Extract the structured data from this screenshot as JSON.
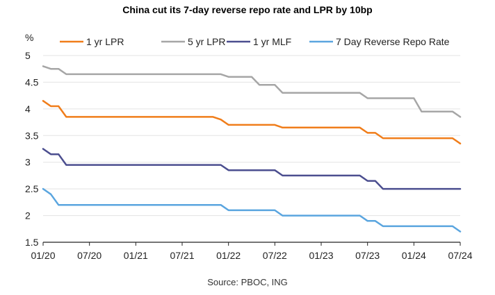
{
  "chart_data": {
    "type": "line",
    "title": "China cut its 7-day reverse repo rate and LPR by 10bp",
    "source": "Source: PBOC, ING",
    "ylabel": "%",
    "ylim": [
      1.5,
      5
    ],
    "yticks": [
      5,
      4.5,
      4,
      3.5,
      3,
      2.5,
      2,
      1.5
    ],
    "ytick_labels": [
      "5",
      "4.5",
      "4",
      "3.5",
      "3",
      "2.5",
      "2",
      "1.5"
    ],
    "xlim": [
      0,
      54
    ],
    "xticks": [
      0,
      6,
      12,
      18,
      24,
      30,
      36,
      42,
      48,
      54
    ],
    "xtick_labels": [
      "01/20",
      "07/20",
      "01/21",
      "07/21",
      "01/22",
      "07/22",
      "01/23",
      "07/23",
      "01/24",
      "07/24"
    ],
    "grid": "horizontal",
    "legend": "top",
    "series": [
      {
        "name": "1 yr LPR",
        "color": "#f07d1a",
        "points": [
          [
            0,
            4.15
          ],
          [
            1,
            4.05
          ],
          [
            2,
            4.05
          ],
          [
            3,
            3.85
          ],
          [
            22,
            3.85
          ],
          [
            23,
            3.8
          ],
          [
            24,
            3.7
          ],
          [
            30,
            3.7
          ],
          [
            31,
            3.65
          ],
          [
            41,
            3.65
          ],
          [
            42,
            3.55
          ],
          [
            43,
            3.55
          ],
          [
            44,
            3.45
          ],
          [
            53,
            3.45
          ],
          [
            54,
            3.35
          ]
        ]
      },
      {
        "name": "5 yr LPR",
        "color": "#a6a6a6",
        "points": [
          [
            0,
            4.8
          ],
          [
            1,
            4.75
          ],
          [
            2,
            4.75
          ],
          [
            3,
            4.65
          ],
          [
            23,
            4.65
          ],
          [
            24,
            4.6
          ],
          [
            27,
            4.6
          ],
          [
            28,
            4.45
          ],
          [
            30,
            4.45
          ],
          [
            31,
            4.3
          ],
          [
            41,
            4.3
          ],
          [
            42,
            4.2
          ],
          [
            48,
            4.2
          ],
          [
            49,
            3.95
          ],
          [
            53,
            3.95
          ],
          [
            54,
            3.85
          ]
        ]
      },
      {
        "name": "1 yr MLF",
        "color": "#4b4e8f",
        "points": [
          [
            0,
            3.25
          ],
          [
            1,
            3.15
          ],
          [
            2,
            3.15
          ],
          [
            3,
            2.95
          ],
          [
            23,
            2.95
          ],
          [
            24,
            2.85
          ],
          [
            30,
            2.85
          ],
          [
            31,
            2.75
          ],
          [
            41,
            2.75
          ],
          [
            42,
            2.65
          ],
          [
            43,
            2.65
          ],
          [
            44,
            2.5
          ],
          [
            54,
            2.5
          ]
        ]
      },
      {
        "name": "7 Day Reverse Repo Rate",
        "color": "#5aa5df",
        "points": [
          [
            0,
            2.5
          ],
          [
            1,
            2.4
          ],
          [
            2,
            2.2
          ],
          [
            23,
            2.2
          ],
          [
            24,
            2.1
          ],
          [
            30,
            2.1
          ],
          [
            31,
            2.0
          ],
          [
            41,
            2.0
          ],
          [
            42,
            1.9
          ],
          [
            43,
            1.9
          ],
          [
            44,
            1.8
          ],
          [
            53,
            1.8
          ],
          [
            54,
            1.7
          ]
        ]
      }
    ]
  }
}
